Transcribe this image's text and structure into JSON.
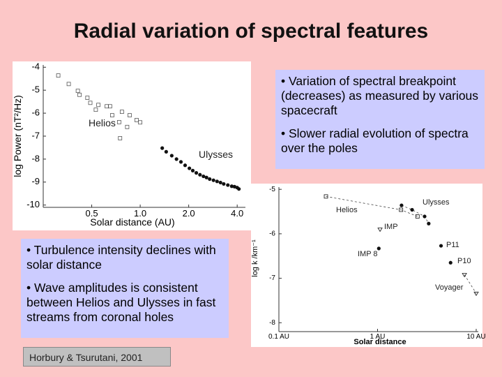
{
  "title": "Radial variation of spectral features",
  "right_box": {
    "bullets": [
      "• Variation of spectral breakpoint (decreases) as measured by various spacecraft",
      "• Slower radial evolution of spectra over the poles"
    ]
  },
  "left_box": {
    "bullets": [
      "• Turbulence intensity declines with solar distance",
      "• Wave amplitudes is consistent between Helios and Ulysses in fast streams from coronal holes"
    ]
  },
  "citation": "Horbury & Tsurutani, 2001",
  "chart_data": [
    {
      "type": "scatter",
      "x_label": "Solar distance (AU)",
      "y_label": "log Power (nT²/Hz)",
      "log_x": true,
      "xlim": [
        0.25,
        4.5
      ],
      "ylim": [
        -10.1,
        -3.9
      ],
      "xticks": [
        0.5,
        {
          "value": 1,
          "label": "1.0"
        },
        {
          "value": 2,
          "label": "2.0"
        },
        {
          "value": 4,
          "label": "4.0"
        }
      ],
      "yticks": [
        -4,
        -5,
        -6,
        -7,
        -8,
        -9,
        -10
      ],
      "series": [
        {
          "name": "Helios",
          "marker": "open-square",
          "color": "#555555",
          "x": [
            0.31,
            0.36,
            0.41,
            0.42,
            0.47,
            0.49,
            0.55,
            0.62,
            0.65,
            0.53,
            0.77,
            0.67,
            0.86,
            0.95,
            0.74,
            0.83,
            1.0,
            0.75
          ],
          "values": [
            -4.36,
            -4.73,
            -5.03,
            -5.2,
            -5.33,
            -5.55,
            -5.64,
            -5.7,
            -5.7,
            -5.85,
            -5.94,
            -6.09,
            -6.09,
            -6.3,
            -6.39,
            -6.6,
            -6.4,
            -7.09
          ]
        },
        {
          "name": "Ulysses",
          "marker": "filled-circle",
          "color": "#111111",
          "x": [
            1.37,
            1.45,
            1.57,
            1.68,
            1.79,
            1.9,
            2.02,
            2.12,
            2.23,
            2.35,
            2.47,
            2.58,
            2.7,
            2.85,
            3.0,
            3.15,
            3.3,
            3.5,
            3.7,
            3.85,
            4.0,
            4.1
          ],
          "values": [
            -7.52,
            -7.68,
            -7.85,
            -8.0,
            -8.12,
            -8.27,
            -8.4,
            -8.5,
            -8.6,
            -8.68,
            -8.75,
            -8.8,
            -8.87,
            -8.92,
            -8.97,
            -9.02,
            -9.08,
            -9.13,
            -9.18,
            -9.2,
            -9.24,
            -9.3
          ]
        }
      ]
    },
    {
      "type": "scatter",
      "x_label": "Solar distance",
      "y_label": "log k /km⁻¹",
      "log_x": true,
      "line": "dashed",
      "xlim": [
        0.1,
        10.5
      ],
      "ylim": [
        -8.2,
        -4.95
      ],
      "xticks": [
        {
          "value": 0.1,
          "label": "0.1 AU"
        },
        {
          "value": 1,
          "label": "1 AU"
        },
        {
          "value": 10,
          "label": "10 AU"
        }
      ],
      "yticks": [
        -5,
        -6,
        -7,
        -8
      ],
      "series": [
        {
          "name": "Helios",
          "marker": "open-square",
          "color": "#111111",
          "x": [
            0.3,
            1.73,
            2.54
          ],
          "values": [
            -5.16,
            -5.46,
            -5.61
          ]
        },
        {
          "name": "Ulysses",
          "marker": "filled-circle",
          "color": "#111111",
          "x": [
            1.75,
            2.24,
            3.0,
            3.3
          ],
          "values": [
            -5.36,
            -5.46,
            -5.61,
            -5.77
          ]
        },
        {
          "name": "IMP",
          "marker": "open-triangle",
          "color": "#111111",
          "x": [
            1.06
          ],
          "values": [
            -5.9
          ]
        },
        {
          "name": "IMP 8",
          "marker": "filled-circle",
          "color": "#111111",
          "x": [
            1.03
          ],
          "values": [
            -6.33
          ]
        },
        {
          "name": "P11",
          "marker": "filled-circle",
          "color": "#111111",
          "x": [
            4.4
          ],
          "values": [
            -6.27
          ]
        },
        {
          "name": "P10",
          "marker": "filled-circle",
          "color": "#111111",
          "x": [
            5.5
          ],
          "values": [
            -6.65
          ]
        },
        {
          "name": "Voyager",
          "marker": "open-triangle",
          "color": "#111111",
          "x": [
            7.6,
            10.0
          ],
          "values": [
            -6.92,
            -7.34
          ]
        }
      ]
    }
  ]
}
